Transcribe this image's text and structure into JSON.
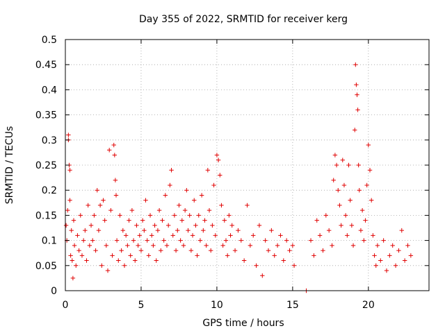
{
  "chart_data": {
    "type": "scatter",
    "title": "Day 355 of 2022, SRMTID for receiver kerg",
    "xlabel": "GPS time / hours",
    "ylabel": "SRMTID / TECUs",
    "xlim": [
      0,
      24
    ],
    "ylim": [
      0,
      0.5
    ],
    "xticks": [
      0,
      5,
      10,
      15,
      20
    ],
    "yticks": [
      0,
      0.05,
      0.1,
      0.15,
      0.2,
      0.25,
      0.3,
      0.35,
      0.4,
      0.45,
      0.5
    ],
    "xtick_labels": [
      "0",
      "5",
      "10",
      "15",
      "20"
    ],
    "ytick_labels": [
      "0",
      "0.05",
      "0.1",
      "0.15",
      "0.2",
      "0.25",
      "0.3",
      "0.35",
      "0.4",
      "0.45",
      "0.5"
    ],
    "grid": true,
    "marker": "+",
    "color": "#e00000",
    "series": [
      {
        "name": "SRMTID",
        "points": [
          [
            0.05,
            0.13
          ],
          [
            0.1,
            0.1
          ],
          [
            0.15,
            0.16
          ],
          [
            0.2,
            0.31
          ],
          [
            0.2,
            0.3
          ],
          [
            0.25,
            0.25
          ],
          [
            0.3,
            0.24
          ],
          [
            0.3,
            0.18
          ],
          [
            0.35,
            0.07
          ],
          [
            0.4,
            0.12
          ],
          [
            0.45,
            0.06
          ],
          [
            0.5,
            0.025
          ],
          [
            0.55,
            0.14
          ],
          [
            0.6,
            0.09
          ],
          [
            0.7,
            0.05
          ],
          [
            0.8,
            0.11
          ],
          [
            0.9,
            0.08
          ],
          [
            1.0,
            0.15
          ],
          [
            1.1,
            0.07
          ],
          [
            1.2,
            0.1
          ],
          [
            1.3,
            0.12
          ],
          [
            1.4,
            0.06
          ],
          [
            1.5,
            0.17
          ],
          [
            1.6,
            0.09
          ],
          [
            1.7,
            0.13
          ],
          [
            1.8,
            0.1
          ],
          [
            1.9,
            0.15
          ],
          [
            2.0,
            0.08
          ],
          [
            2.1,
            0.2
          ],
          [
            2.2,
            0.12
          ],
          [
            2.3,
            0.17
          ],
          [
            2.4,
            0.05
          ],
          [
            2.5,
            0.18
          ],
          [
            2.6,
            0.14
          ],
          [
            2.7,
            0.09
          ],
          [
            2.8,
            0.04
          ],
          [
            2.9,
            0.28
          ],
          [
            3.0,
            0.16
          ],
          [
            3.1,
            0.07
          ],
          [
            3.2,
            0.29
          ],
          [
            3.25,
            0.27
          ],
          [
            3.3,
            0.22
          ],
          [
            3.35,
            0.19
          ],
          [
            3.4,
            0.1
          ],
          [
            3.5,
            0.06
          ],
          [
            3.6,
            0.15
          ],
          [
            3.7,
            0.08
          ],
          [
            3.8,
            0.12
          ],
          [
            3.9,
            0.05
          ],
          [
            4.0,
            0.11
          ],
          [
            4.1,
            0.09
          ],
          [
            4.2,
            0.14
          ],
          [
            4.3,
            0.07
          ],
          [
            4.4,
            0.16
          ],
          [
            4.5,
            0.1
          ],
          [
            4.6,
            0.06
          ],
          [
            4.7,
            0.13
          ],
          [
            4.8,
            0.09
          ],
          [
            4.9,
            0.11
          ],
          [
            5.0,
            0.08
          ],
          [
            5.1,
            0.14
          ],
          [
            5.2,
            0.12
          ],
          [
            5.3,
            0.18
          ],
          [
            5.4,
            0.1
          ],
          [
            5.5,
            0.07
          ],
          [
            5.6,
            0.15
          ],
          [
            5.7,
            0.11
          ],
          [
            5.8,
            0.09
          ],
          [
            5.9,
            0.13
          ],
          [
            6.0,
            0.06
          ],
          [
            6.1,
            0.12
          ],
          [
            6.2,
            0.16
          ],
          [
            6.3,
            0.08
          ],
          [
            6.4,
            0.14
          ],
          [
            6.5,
            0.1
          ],
          [
            6.6,
            0.19
          ],
          [
            6.7,
            0.09
          ],
          [
            6.8,
            0.13
          ],
          [
            6.9,
            0.21
          ],
          [
            7.0,
            0.24
          ],
          [
            7.1,
            0.11
          ],
          [
            7.2,
            0.15
          ],
          [
            7.3,
            0.08
          ],
          [
            7.4,
            0.12
          ],
          [
            7.5,
            0.17
          ],
          [
            7.6,
            0.1
          ],
          [
            7.7,
            0.14
          ],
          [
            7.8,
            0.09
          ],
          [
            7.9,
            0.16
          ],
          [
            8.0,
            0.2
          ],
          [
            8.1,
            0.12
          ],
          [
            8.2,
            0.15
          ],
          [
            8.3,
            0.08
          ],
          [
            8.4,
            0.11
          ],
          [
            8.5,
            0.18
          ],
          [
            8.6,
            0.13
          ],
          [
            8.7,
            0.07
          ],
          [
            8.8,
            0.15
          ],
          [
            8.9,
            0.1
          ],
          [
            9.0,
            0.19
          ],
          [
            9.1,
            0.12
          ],
          [
            9.2,
            0.14
          ],
          [
            9.3,
            0.09
          ],
          [
            9.4,
            0.24
          ],
          [
            9.5,
            0.16
          ],
          [
            9.6,
            0.08
          ],
          [
            9.7,
            0.13
          ],
          [
            9.8,
            0.21
          ],
          [
            9.9,
            0.11
          ],
          [
            10.0,
            0.27
          ],
          [
            10.1,
            0.26
          ],
          [
            10.2,
            0.23
          ],
          [
            10.3,
            0.17
          ],
          [
            10.4,
            0.09
          ],
          [
            10.5,
            0.14
          ],
          [
            10.6,
            0.1
          ],
          [
            10.7,
            0.07
          ],
          [
            10.8,
            0.15
          ],
          [
            10.9,
            0.11
          ],
          [
            11.0,
            0.13
          ],
          [
            11.2,
            0.08
          ],
          [
            11.4,
            0.12
          ],
          [
            11.6,
            0.1
          ],
          [
            11.8,
            0.06
          ],
          [
            12.0,
            0.17
          ],
          [
            12.2,
            0.09
          ],
          [
            12.4,
            0.11
          ],
          [
            12.6,
            0.05
          ],
          [
            12.8,
            0.13
          ],
          [
            13.0,
            0.03
          ],
          [
            13.2,
            0.1
          ],
          [
            13.4,
            0.08
          ],
          [
            13.6,
            0.12
          ],
          [
            13.8,
            0.07
          ],
          [
            14.0,
            0.09
          ],
          [
            14.2,
            0.11
          ],
          [
            14.4,
            0.06
          ],
          [
            14.6,
            0.1
          ],
          [
            14.8,
            0.08
          ],
          [
            15.0,
            0.09
          ],
          [
            15.1,
            0.05
          ],
          [
            15.9,
            0.0
          ],
          [
            16.2,
            0.1
          ],
          [
            16.4,
            0.07
          ],
          [
            16.6,
            0.14
          ],
          [
            16.8,
            0.11
          ],
          [
            17.0,
            0.08
          ],
          [
            17.2,
            0.15
          ],
          [
            17.4,
            0.12
          ],
          [
            17.6,
            0.09
          ],
          [
            17.7,
            0.22
          ],
          [
            17.8,
            0.27
          ],
          [
            17.9,
            0.25
          ],
          [
            18.0,
            0.2
          ],
          [
            18.1,
            0.17
          ],
          [
            18.2,
            0.13
          ],
          [
            18.3,
            0.26
          ],
          [
            18.4,
            0.21
          ],
          [
            18.5,
            0.15
          ],
          [
            18.6,
            0.11
          ],
          [
            18.7,
            0.25
          ],
          [
            18.8,
            0.18
          ],
          [
            18.9,
            0.13
          ],
          [
            19.0,
            0.09
          ],
          [
            19.1,
            0.32
          ],
          [
            19.15,
            0.45
          ],
          [
            19.2,
            0.41
          ],
          [
            19.25,
            0.39
          ],
          [
            19.3,
            0.36
          ],
          [
            19.35,
            0.25
          ],
          [
            19.4,
            0.2
          ],
          [
            19.5,
            0.12
          ],
          [
            19.6,
            0.16
          ],
          [
            19.7,
            0.1
          ],
          [
            19.8,
            0.14
          ],
          [
            19.9,
            0.21
          ],
          [
            20.0,
            0.29
          ],
          [
            20.1,
            0.24
          ],
          [
            20.2,
            0.18
          ],
          [
            20.3,
            0.11
          ],
          [
            20.4,
            0.07
          ],
          [
            20.5,
            0.05
          ],
          [
            20.6,
            0.09
          ],
          [
            20.8,
            0.06
          ],
          [
            21.0,
            0.1
          ],
          [
            21.2,
            0.04
          ],
          [
            21.4,
            0.07
          ],
          [
            21.6,
            0.09
          ],
          [
            21.8,
            0.05
          ],
          [
            22.0,
            0.08
          ],
          [
            22.2,
            0.12
          ],
          [
            22.4,
            0.06
          ],
          [
            22.6,
            0.09
          ],
          [
            22.8,
            0.07
          ]
        ]
      }
    ]
  }
}
